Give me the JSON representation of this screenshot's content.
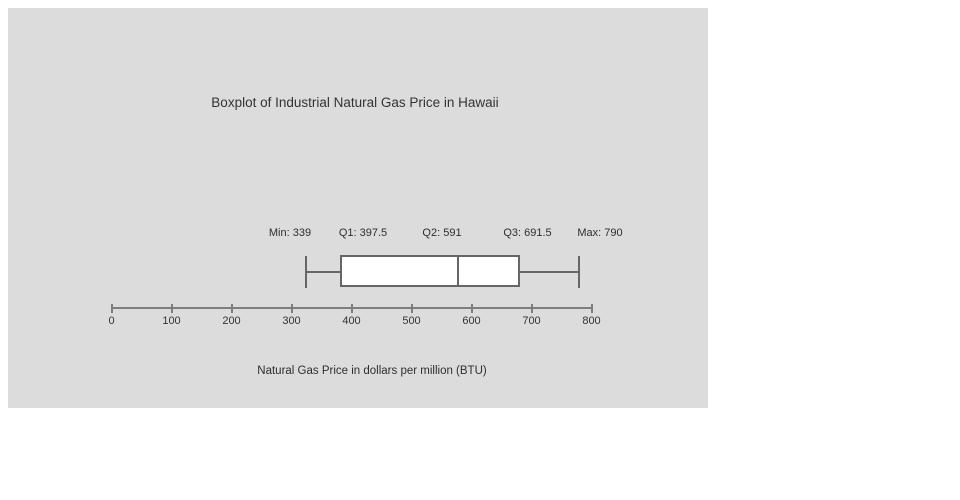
{
  "chart_data": {
    "type": "boxplot",
    "orientation": "horizontal",
    "title": "Boxplot of Industrial Natural Gas Price in Hawaii",
    "xlabel": "Natural Gas Price in dollars per million (BTU)",
    "stats": {
      "min": 339,
      "q1": 397.5,
      "median": 591,
      "q3": 691.5,
      "max": 790
    },
    "stat_labels": [
      "Min: 339",
      "Q1: 397.5",
      "Q2: 591",
      "Q3: 691.5",
      "Max: 790"
    ],
    "axis": {
      "min": 0,
      "max": 800,
      "tick_step": 100,
      "tick_labels": [
        "0",
        "100",
        "200",
        "300",
        "400",
        "500",
        "600",
        "700",
        "800"
      ]
    },
    "legend": "none",
    "grid": false
  },
  "colors": {
    "panel_background": "#dcdcdc",
    "box_fill": "#ffffff",
    "box_stroke": "#666666",
    "axis_stroke": "#7d7d7d",
    "text": "#2e2e2e"
  }
}
